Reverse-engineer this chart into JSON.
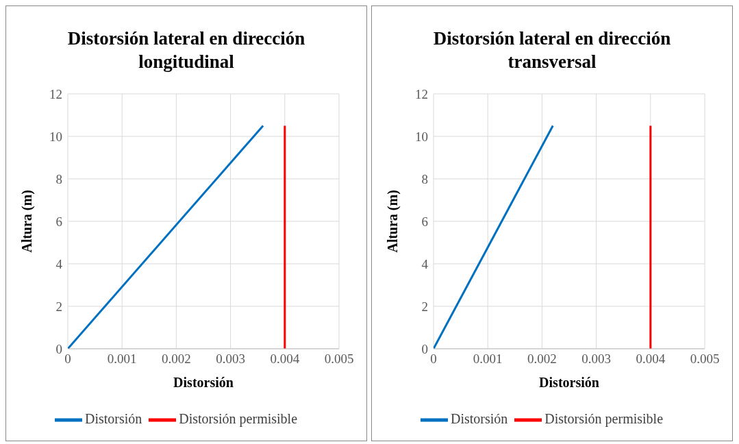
{
  "chart_data": [
    {
      "type": "line",
      "title": "Distorsión lateral en dirección longitudinal",
      "xlabel": "Distorsión",
      "ylabel": "Altura (m)",
      "series": [
        {
          "name": "Distorsión",
          "color": "#0070c0",
          "x": [
            0,
            0.0036
          ],
          "values": [
            0,
            10.5
          ]
        },
        {
          "name": "Distorsión permisible",
          "color": "#ff0000",
          "x": [
            0.004,
            0.004
          ],
          "values": [
            0,
            10.5
          ]
        }
      ],
      "xlim": [
        0,
        0.005
      ],
      "xticks": [
        0,
        0.001,
        0.002,
        0.003,
        0.004,
        0.005
      ],
      "ylim": [
        0,
        12
      ],
      "yticks": [
        0,
        2,
        4,
        6,
        8,
        10,
        12
      ],
      "grid": true,
      "legend": "bottom",
      "marker": "none",
      "line_style": "solid"
    },
    {
      "type": "line",
      "title": "Distorsión lateral en dirección transversal",
      "xlabel": "Distorsión",
      "ylabel": "Altura (m)",
      "series": [
        {
          "name": "Distorsión",
          "color": "#0070c0",
          "x": [
            0,
            0.0022
          ],
          "values": [
            0,
            10.5
          ]
        },
        {
          "name": "Distorsión permisible",
          "color": "#ff0000",
          "x": [
            0.004,
            0.004
          ],
          "values": [
            0,
            10.5
          ]
        }
      ],
      "xlim": [
        0,
        0.005
      ],
      "xticks": [
        0,
        0.001,
        0.002,
        0.003,
        0.004,
        0.005
      ],
      "ylim": [
        0,
        12
      ],
      "yticks": [
        0,
        2,
        4,
        6,
        8,
        10,
        12
      ],
      "grid": true,
      "legend": "bottom",
      "marker": "none",
      "line_style": "solid"
    }
  ]
}
